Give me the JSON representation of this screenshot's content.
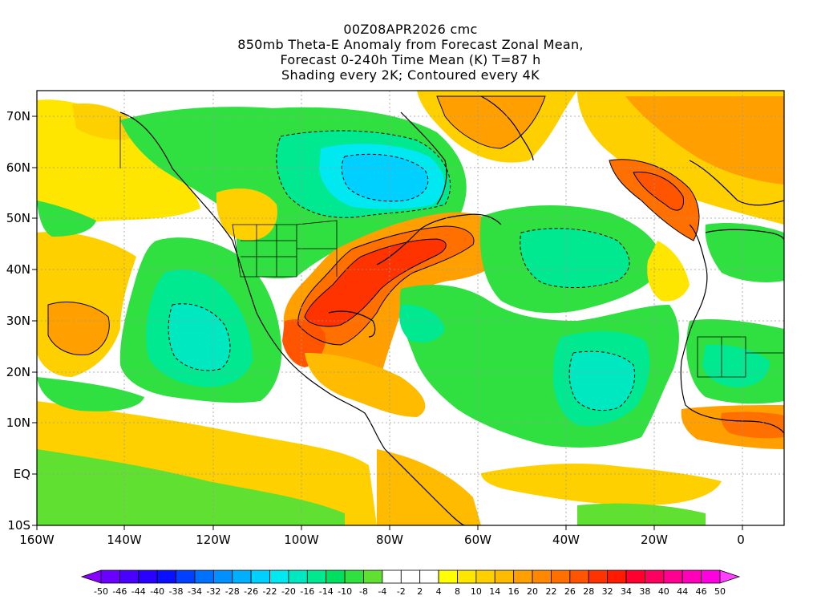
{
  "title": {
    "line1": "00Z08APR2026 cmc",
    "line2": "850mb Theta-E Anomaly from Forecast Zonal Mean,",
    "line3": "Forecast 0-240h Time Mean (K) T=87 h",
    "line4": "Shading every 2K; Contoured every 4K"
  },
  "axes": {
    "x_ticks": [
      "160W",
      "140W",
      "120W",
      "100W",
      "80W",
      "60W",
      "40W",
      "20W",
      "0"
    ],
    "y_ticks": [
      "70N",
      "60N",
      "50N",
      "40N",
      "30N",
      "20N",
      "10N",
      "EQ",
      "10S"
    ]
  },
  "colorbar": {
    "labels": [
      "-50",
      "-46",
      "-44",
      "-40",
      "-38",
      "-34",
      "-32",
      "-28",
      "-26",
      "-22",
      "-20",
      "-16",
      "-14",
      "-10",
      "-8",
      "-4",
      "-2",
      "2",
      "4",
      "8",
      "10",
      "14",
      "16",
      "20",
      "22",
      "26",
      "28",
      "32",
      "34",
      "38",
      "40",
      "44",
      "46",
      "50"
    ],
    "colors": [
      "#8a00ff",
      "#6a00ff",
      "#4800ff",
      "#2a00ff",
      "#0a10ff",
      "#0040ff",
      "#0070ff",
      "#0090ff",
      "#00b0ff",
      "#00d0ff",
      "#00e8f0",
      "#00e8c0",
      "#00e890",
      "#00e060",
      "#30e040",
      "#60e030",
      "#ffffff",
      "#ffffff",
      "#ffffff",
      "#ffff00",
      "#ffe600",
      "#ffd000",
      "#ffbb00",
      "#ffa000",
      "#ff8800",
      "#ff7000",
      "#ff5500",
      "#ff3300",
      "#ff1a00",
      "#ff0030",
      "#ff0060",
      "#ff0090",
      "#ff00b8",
      "#ff00e0",
      "#ff40ff"
    ]
  },
  "regions": [
    {
      "name": "greenland-warm-anomaly",
      "color": "#ffd000"
    },
    {
      "name": "canada-cold-anomaly",
      "color": "#30e040"
    },
    {
      "name": "hudson-bay-cold-core",
      "color": "#00d0ff"
    },
    {
      "name": "eastern-us-warm-anomaly",
      "color": "#ff8800"
    },
    {
      "name": "eastern-us-warm-core",
      "color": "#ff3300"
    },
    {
      "name": "north-atlantic-cold-anomaly",
      "color": "#30e040"
    },
    {
      "name": "eastern-pacific-cold-anomaly",
      "color": "#30e040"
    },
    {
      "name": "iceland-warm-core",
      "color": "#ff5500"
    }
  ]
}
